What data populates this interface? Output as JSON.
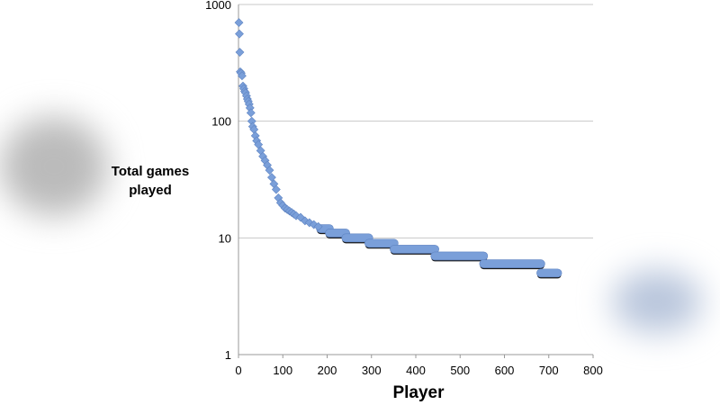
{
  "chart_data": {
    "type": "scatter",
    "title": "",
    "xlabel": "Player",
    "ylabel": "Total games played",
    "xlim": [
      0,
      800
    ],
    "ylim": [
      1,
      1000
    ],
    "yscale": "log",
    "x_ticks": [
      "0",
      "100",
      "200",
      "300",
      "400",
      "500",
      "600",
      "700",
      "800"
    ],
    "y_ticks": [
      "1",
      "10",
      "100",
      "1000"
    ],
    "grid": "horizontal",
    "marker": "diamond",
    "marker_color": "#7a9fd9",
    "points": [
      [
        1,
        700
      ],
      [
        2,
        560
      ],
      [
        3,
        390
      ],
      [
        4,
        265
      ],
      [
        6,
        258
      ],
      [
        8,
        245
      ],
      [
        10,
        200
      ],
      [
        12,
        190
      ],
      [
        14,
        180
      ],
      [
        16,
        175
      ],
      [
        18,
        165
      ],
      [
        20,
        155
      ],
      [
        22,
        148
      ],
      [
        24,
        140
      ],
      [
        26,
        130
      ],
      [
        28,
        118
      ],
      [
        30,
        100
      ],
      [
        32,
        90
      ],
      [
        35,
        85
      ],
      [
        38,
        75
      ],
      [
        41,
        68
      ],
      [
        45,
        63
      ],
      [
        50,
        56
      ],
      [
        55,
        50
      ],
      [
        60,
        46
      ],
      [
        65,
        42
      ],
      [
        70,
        38
      ],
      [
        75,
        33
      ],
      [
        80,
        29
      ],
      [
        85,
        26
      ],
      [
        90,
        22
      ],
      [
        95,
        20
      ],
      [
        100,
        19
      ],
      [
        105,
        18
      ],
      [
        110,
        17.5
      ],
      [
        115,
        17
      ],
      [
        120,
        16.5
      ],
      [
        125,
        16
      ],
      [
        130,
        15.5
      ],
      [
        140,
        15
      ],
      [
        150,
        14
      ],
      [
        160,
        13.5
      ],
      [
        170,
        13
      ],
      [
        180,
        12.5
      ]
    ],
    "runs": [
      {
        "value": 12,
        "from": 185,
        "to": 205
      },
      {
        "value": 11,
        "from": 205,
        "to": 242
      },
      {
        "value": 10,
        "from": 242,
        "to": 294
      },
      {
        "value": 9,
        "from": 294,
        "to": 351
      },
      {
        "value": 8,
        "from": 351,
        "to": 443
      },
      {
        "value": 7,
        "from": 443,
        "to": 553
      },
      {
        "value": 6,
        "from": 553,
        "to": 682
      },
      {
        "value": 5,
        "from": 682,
        "to": 720
      }
    ]
  }
}
